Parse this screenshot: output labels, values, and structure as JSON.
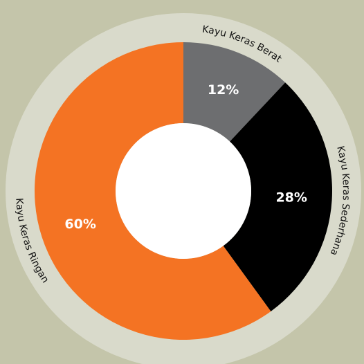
{
  "chart_data": {
    "type": "donut",
    "categories": [
      "Kayu Keras Berat",
      "Kayu Keras Sederhana",
      "Kayu Keras Ringan"
    ],
    "values": [
      12,
      28,
      60
    ],
    "value_labels": [
      "12%",
      "28%",
      "60%"
    ],
    "colors": [
      "#6d6e70",
      "#000000",
      "#f47323"
    ]
  }
}
